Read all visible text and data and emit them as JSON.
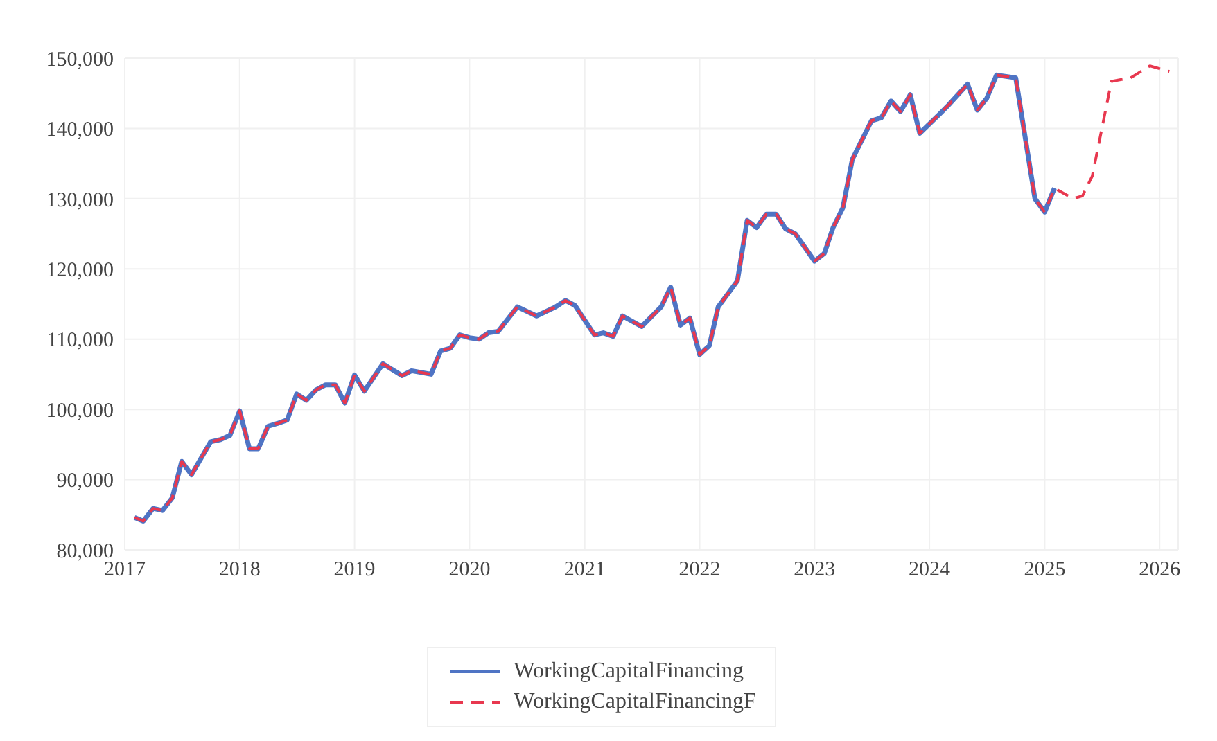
{
  "chart_data": {
    "type": "line",
    "x": [
      "2017-02",
      "2017-03",
      "2017-04",
      "2017-05",
      "2017-06",
      "2017-07",
      "2017-08",
      "2017-10",
      "2017-11",
      "2017-12",
      "2018-01",
      "2018-02",
      "2018-03",
      "2018-04",
      "2018-05",
      "2018-06",
      "2018-07",
      "2018-08",
      "2018-09",
      "2018-10",
      "2018-11",
      "2018-12",
      "2019-01",
      "2019-02",
      "2019-04",
      "2019-06",
      "2019-07",
      "2019-09",
      "2019-10",
      "2019-11",
      "2019-12",
      "2020-01",
      "2020-02",
      "2020-03",
      "2020-04",
      "2020-06",
      "2020-08",
      "2020-10",
      "2020-11",
      "2020-12",
      "2021-02",
      "2021-03",
      "2021-04",
      "2021-05",
      "2021-07",
      "2021-09",
      "2021-10",
      "2021-11",
      "2021-12",
      "2022-01",
      "2022-02",
      "2022-03",
      "2022-05",
      "2022-06",
      "2022-07",
      "2022-08",
      "2022-09",
      "2022-10",
      "2022-11",
      "2023-01",
      "2023-02",
      "2023-03",
      "2023-04",
      "2023-05",
      "2023-07",
      "2023-08",
      "2023-09",
      "2023-10",
      "2023-11",
      "2023-12",
      "2024-02",
      "2024-03",
      "2024-05",
      "2024-06",
      "2024-07",
      "2024-08",
      "2024-10",
      "2024-12",
      "2025-01",
      "2025-02",
      "2025-04",
      "2025-05",
      "2025-06",
      "2025-08",
      "2025-10",
      "2025-12",
      "2026-02"
    ],
    "series": [
      {
        "name": "WorkingCapitalFinancing",
        "color": "#4f74c4",
        "line_style": "solid",
        "values": [
          84600,
          84100,
          85900,
          85600,
          87400,
          92600,
          90700,
          95400,
          95700,
          96300,
          99800,
          94400,
          94400,
          97600,
          98000,
          98500,
          102200,
          101300,
          102800,
          103500,
          103500,
          100900,
          104900,
          102600,
          106500,
          104800,
          105500,
          105000,
          108300,
          108700,
          110600,
          110200,
          110000,
          110900,
          111100,
          114600,
          113300,
          114600,
          115500,
          114800,
          110600,
          110900,
          110400,
          113300,
          111800,
          114600,
          117400,
          112000,
          113000,
          107800,
          109100,
          114600,
          118300,
          126900,
          125900,
          127800,
          127800,
          125700,
          125000,
          121100,
          122200,
          125900,
          128700,
          135600,
          141100,
          141500,
          143900,
          142400,
          144800,
          139300,
          142000,
          143300,
          146300,
          142600,
          144300,
          147600,
          147200,
          130000,
          128100,
          131500,
          null,
          null,
          null,
          null,
          null,
          null,
          null
        ]
      },
      {
        "name": "WorkingCapitalFinancingF",
        "color": "#e8384f",
        "line_style": "dashed",
        "values": [
          84600,
          84100,
          85900,
          85600,
          87400,
          92600,
          90700,
          95400,
          95700,
          96300,
          99800,
          94400,
          94400,
          97600,
          98000,
          98500,
          102200,
          101300,
          102800,
          103500,
          103500,
          100900,
          104900,
          102600,
          106500,
          104800,
          105500,
          105000,
          108300,
          108700,
          110600,
          110200,
          110000,
          110900,
          111100,
          114600,
          113300,
          114600,
          115500,
          114800,
          110600,
          110900,
          110400,
          113300,
          111800,
          114600,
          117400,
          112000,
          113000,
          107800,
          109100,
          114600,
          118300,
          126900,
          125900,
          127800,
          127800,
          125700,
          125000,
          121100,
          122200,
          125900,
          128700,
          135600,
          141100,
          141500,
          143900,
          142400,
          144800,
          139300,
          142000,
          143300,
          146300,
          142600,
          144300,
          147600,
          147200,
          130000,
          128100,
          131500,
          130000,
          130400,
          133200,
          146700,
          147200,
          148900,
          148100
        ]
      }
    ],
    "xlim": [
      "2017-01",
      "2026-03"
    ],
    "xticks": [
      {
        "value": "2017",
        "label": "2017"
      },
      {
        "value": "2018",
        "label": "2018"
      },
      {
        "value": "2019",
        "label": "2019"
      },
      {
        "value": "2020",
        "label": "2020"
      },
      {
        "value": "2021",
        "label": "2021"
      },
      {
        "value": "2022",
        "label": "2022"
      },
      {
        "value": "2023",
        "label": "2023"
      },
      {
        "value": "2024",
        "label": "2024"
      },
      {
        "value": "2025",
        "label": "2025"
      },
      {
        "value": "2026",
        "label": "2026"
      }
    ],
    "ylim": [
      80000,
      150000
    ],
    "yticks": [
      {
        "value": 80000,
        "label": "80,000"
      },
      {
        "value": 90000,
        "label": "90,000"
      },
      {
        "value": 100000,
        "label": "100,000"
      },
      {
        "value": 110000,
        "label": "110,000"
      },
      {
        "value": 120000,
        "label": "120,000"
      },
      {
        "value": 130000,
        "label": "130,000"
      },
      {
        "value": 140000,
        "label": "140,000"
      },
      {
        "value": 150000,
        "label": "150,000"
      }
    ],
    "grid": true,
    "legend": "bottom",
    "marker": "none"
  }
}
